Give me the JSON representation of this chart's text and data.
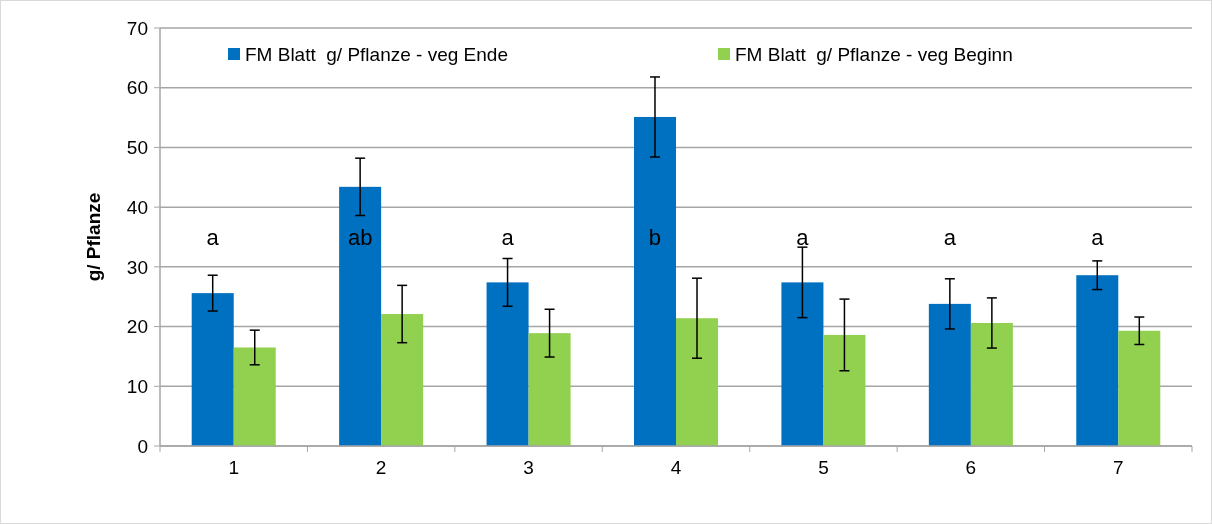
{
  "chart_data": {
    "type": "bar",
    "ylabel": "g/ Pflanze",
    "categories": [
      "1",
      "2",
      "3",
      "4",
      "5",
      "6",
      "7"
    ],
    "series": [
      {
        "name": "FM Blatt  g/ Pflanze - veg Ende",
        "color": "#0070c0",
        "values": [
          25.6,
          43.4,
          27.4,
          55.1,
          27.4,
          23.8,
          28.6
        ],
        "errors": [
          3,
          4.8,
          4,
          6.7,
          5.9,
          4.2,
          2.4
        ]
      },
      {
        "name": "FM Blatt  g/ Pflanze - veg Beginn",
        "color": "#92d050",
        "values": [
          16.5,
          22.1,
          18.9,
          21.4,
          18.6,
          20.6,
          19.3
        ],
        "errors": [
          2.9,
          4.8,
          4,
          6.7,
          6,
          4.2,
          2.3
        ]
      }
    ],
    "ylim": [
      0,
      70
    ],
    "yticks": [
      0,
      10,
      20,
      30,
      40,
      50,
      60,
      70
    ],
    "grid": "y",
    "legend": "top",
    "annotations": [
      "a",
      "ab",
      "a",
      "b",
      "a",
      "a",
      "a"
    ]
  }
}
